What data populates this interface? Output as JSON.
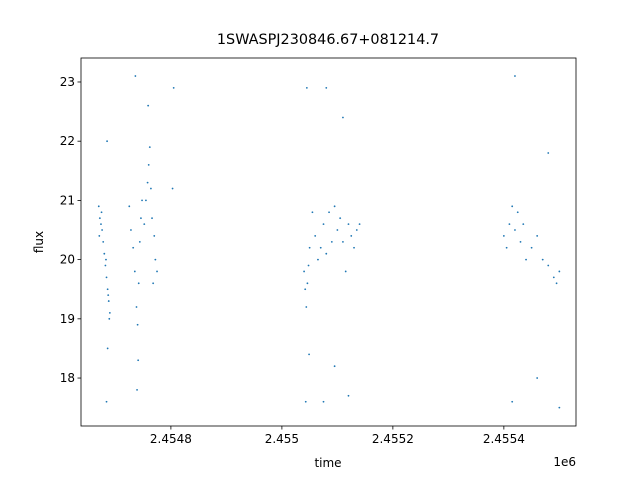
{
  "chart_data": {
    "type": "scatter",
    "title": "1SWASPJ230846.67+081214.7",
    "x_label": "time",
    "y_label": "flux",
    "x_offset_label": "1e6",
    "color": "#1f77b4",
    "xlim": [
      2.454638,
      2.45553
    ],
    "ylim": [
      17.19,
      23.405
    ],
    "xticks": [
      2.4548,
      2.455,
      2.4552,
      2.4554
    ],
    "yticks": [
      18,
      19,
      20,
      21,
      22,
      23
    ],
    "x": [
      2.45467,
      2.454672,
      2.454674,
      2.454676,
      2.454678,
      2.45468,
      2.454682,
      2.454684,
      2.454686,
      2.454688,
      2.45469,
      2.454671,
      2.454675,
      2.454683,
      2.454687,
      2.454689,
      2.454685,
      2.454686,
      2.454684,
      2.454725,
      2.454728,
      2.454732,
      2.454735,
      2.454738,
      2.45474,
      2.454742,
      2.454744,
      2.454746,
      2.454748,
      2.454736,
      2.454739,
      2.454741,
      2.454752,
      2.454755,
      2.454758,
      2.45476,
      2.454762,
      2.454764,
      2.454766,
      2.45477,
      2.454772,
      2.454768,
      2.454759,
      2.454775,
      2.454805,
      2.454803,
      2.45504,
      2.455042,
      2.455044,
      2.455046,
      2.455048,
      2.45505,
      2.455045,
      2.455043,
      2.455049,
      2.455055,
      2.45506,
      2.455065,
      2.45507,
      2.455075,
      2.45508,
      2.455085,
      2.45509,
      2.455095,
      2.4551,
      2.455105,
      2.45511,
      2.455115,
      2.45512,
      2.455125,
      2.45513,
      2.455135,
      2.45514,
      2.45508,
      2.455075,
      2.45511,
      2.45512,
      2.455095,
      2.4554,
      2.455405,
      2.45541,
      2.455415,
      2.45542,
      2.455425,
      2.45543,
      2.455435,
      2.45544,
      2.45545,
      2.45546,
      2.45547,
      2.45548,
      2.45549,
      2.455495,
      2.4555,
      2.45542,
      2.455415,
      2.45546,
      2.45548,
      2.4555
    ],
    "values": [
      20.9,
      20.7,
      20.6,
      20.5,
      20.3,
      20.1,
      19.9,
      19.7,
      19.5,
      19.3,
      19.1,
      20.4,
      20.8,
      20.0,
      19.4,
      19.0,
      22.0,
      18.5,
      17.6,
      20.9,
      20.5,
      20.2,
      19.8,
      19.2,
      18.9,
      19.6,
      20.3,
      20.7,
      21.0,
      23.1,
      17.8,
      18.3,
      20.6,
      21.0,
      21.3,
      21.6,
      21.9,
      21.2,
      20.7,
      20.4,
      20.0,
      19.6,
      22.6,
      19.8,
      22.9,
      21.2,
      19.8,
      19.5,
      19.2,
      19.6,
      19.9,
      20.2,
      22.9,
      17.6,
      18.4,
      20.8,
      20.4,
      20.0,
      20.2,
      20.6,
      20.1,
      20.8,
      20.3,
      20.9,
      20.5,
      20.7,
      20.3,
      19.8,
      20.6,
      20.4,
      20.2,
      20.5,
      20.6,
      22.9,
      17.6,
      22.4,
      17.7,
      18.2,
      20.4,
      20.2,
      20.6,
      20.9,
      20.5,
      20.8,
      20.3,
      20.6,
      20.0,
      20.2,
      20.4,
      20.0,
      19.9,
      19.7,
      19.6,
      19.8,
      23.1,
      17.6,
      18.0,
      21.8,
      17.5
    ]
  }
}
